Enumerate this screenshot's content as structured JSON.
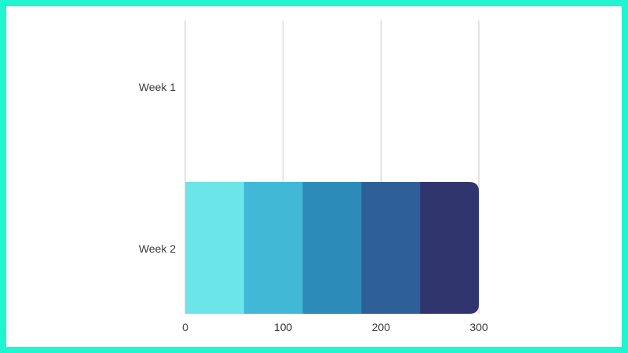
{
  "chart_data": {
    "type": "bar",
    "orientation": "horizontal",
    "stacked": true,
    "categories": [
      "Week 1",
      "Week 2"
    ],
    "series": [
      {
        "values": [
          0,
          60
        ],
        "color": "#6ce5e8"
      },
      {
        "values": [
          0,
          60
        ],
        "color": "#41b8d5"
      },
      {
        "values": [
          0,
          60
        ],
        "color": "#2d8bba"
      },
      {
        "values": [
          0,
          60
        ],
        "color": "#2f5f98"
      },
      {
        "values": [
          0,
          60
        ],
        "color": "#31356e"
      }
    ],
    "xlim": [
      0,
      300
    ],
    "xticks": [
      "0",
      "100",
      "200",
      "300"
    ],
    "title": "",
    "xlabel": "",
    "ylabel": "",
    "grid": "vertical",
    "legend": "none"
  },
  "colors": {
    "border": "#1ff5d0",
    "background": "#ffffff",
    "gridline": "#c8c8c8"
  }
}
